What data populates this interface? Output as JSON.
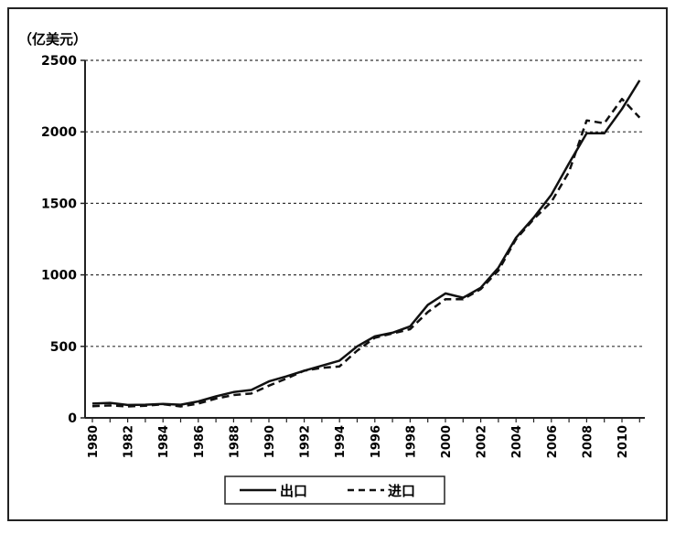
{
  "chart_data": {
    "type": "line",
    "unit_label": "（亿美元）",
    "ylim": [
      0,
      2500
    ],
    "xlim": [
      1980,
      2011
    ],
    "y_ticks": [
      "0",
      "500",
      "1000",
      "1500",
      "2000",
      "2500"
    ],
    "x_ticks": [
      "1980",
      "1982",
      "1984",
      "1986",
      "1988",
      "1990",
      "1992",
      "1994",
      "1996",
      "1998",
      "2000",
      "2002",
      "2004",
      "2006",
      "2008",
      "2010"
    ],
    "grid": "horizontal dashed",
    "legend_position": "bottom",
    "x": [
      1980,
      1981,
      1982,
      1983,
      1984,
      1985,
      1986,
      1987,
      1988,
      1989,
      1990,
      1991,
      1992,
      1993,
      1994,
      1995,
      1996,
      1997,
      1998,
      1999,
      2000,
      2001,
      2002,
      2003,
      2004,
      2005,
      2006,
      2007,
      2008,
      2009,
      2010,
      2011
    ],
    "series": [
      {
        "name": "出口",
        "style": "solid",
        "values": [
          100,
          105,
          90,
          92,
          98,
          92,
          115,
          150,
          180,
          195,
          255,
          290,
          330,
          365,
          400,
          500,
          570,
          595,
          640,
          790,
          870,
          840,
          910,
          1050,
          1260,
          1400,
          1560,
          1780,
          1990,
          1990,
          2160,
          2360
        ]
      },
      {
        "name": "进口",
        "style": "dashed",
        "values": [
          82,
          87,
          80,
          85,
          95,
          80,
          100,
          135,
          160,
          170,
          225,
          275,
          330,
          350,
          360,
          470,
          560,
          590,
          620,
          740,
          830,
          830,
          900,
          1030,
          1250,
          1390,
          1510,
          1720,
          2080,
          2060,
          2230,
          2100
        ]
      }
    ]
  },
  "legend": {
    "export_label": "出口",
    "import_label": "进口"
  }
}
